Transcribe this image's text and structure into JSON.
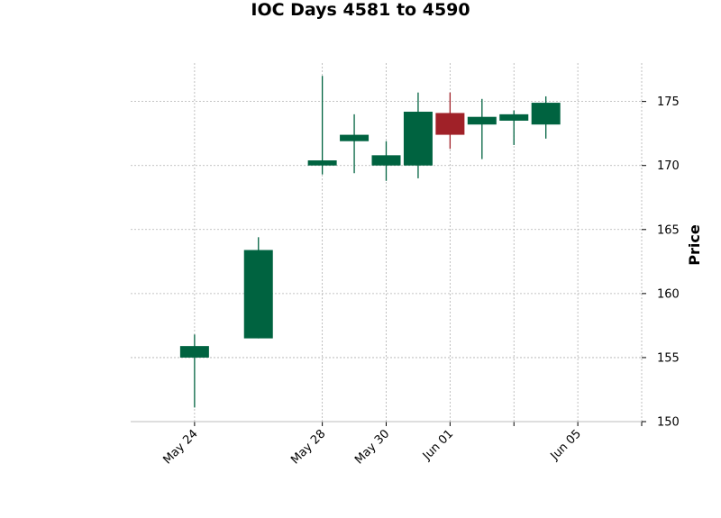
{
  "chart_data": {
    "type": "candlestick",
    "title": "IOC Days 4581 to 4590",
    "ylabel": "Price",
    "xlabel": "",
    "ylim": [
      150,
      178
    ],
    "y_ticks": [
      150,
      155,
      160,
      165,
      170,
      175
    ],
    "x_ticks": [
      {
        "date": "2024-05-24",
        "label": "May 24"
      },
      {
        "date": "2024-05-28",
        "label": "May 28"
      },
      {
        "date": "2024-05-30",
        "label": "May 30"
      },
      {
        "date": "2024-06-01",
        "label": "Jun 01"
      },
      {
        "date": "2024-06-03",
        "label": ""
      },
      {
        "date": "2024-06-05",
        "label": "Jun 05"
      },
      {
        "date": "2024-06-07",
        "label": ""
      }
    ],
    "x_range": [
      "2024-05-22",
      "2024-06-07"
    ],
    "grid": true,
    "up_color": "#006340",
    "down_color": "#a02128",
    "candles": [
      {
        "date": "2024-05-24",
        "open": 155.0,
        "high": 156.8,
        "low": 151.1,
        "close": 155.9
      },
      {
        "date": "2024-05-26",
        "open": 156.5,
        "high": 164.4,
        "low": 156.5,
        "close": 163.4
      },
      {
        "date": "2024-05-28",
        "open": 170.0,
        "high": 177.0,
        "low": 169.3,
        "close": 170.4
      },
      {
        "date": "2024-05-29",
        "open": 171.9,
        "high": 174.0,
        "low": 169.4,
        "close": 172.4
      },
      {
        "date": "2024-05-30",
        "open": 170.0,
        "high": 171.9,
        "low": 168.8,
        "close": 170.8
      },
      {
        "date": "2024-05-31",
        "open": 170.0,
        "high": 175.7,
        "low": 169.0,
        "close": 174.2
      },
      {
        "date": "2024-06-01",
        "open": 174.1,
        "high": 175.7,
        "low": 171.3,
        "close": 172.4
      },
      {
        "date": "2024-06-02",
        "open": 173.2,
        "high": 175.2,
        "low": 170.5,
        "close": 173.8
      },
      {
        "date": "2024-06-03",
        "open": 173.5,
        "high": 174.3,
        "low": 171.6,
        "close": 174.0
      },
      {
        "date": "2024-06-04",
        "open": 173.2,
        "high": 175.4,
        "low": 172.1,
        "close": 174.9
      }
    ]
  }
}
